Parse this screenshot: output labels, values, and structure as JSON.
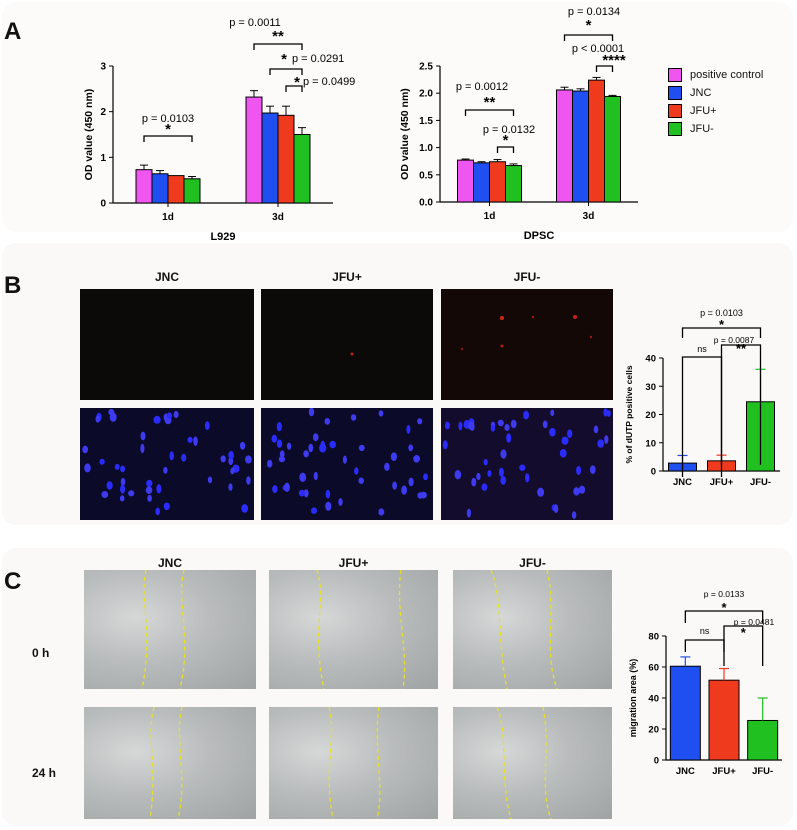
{
  "panels": {
    "a": "A",
    "b": "B",
    "c": "C"
  },
  "colors": {
    "positive_control": "#ef55ef",
    "JNC": "#1f4ff0",
    "JFU_plus": "#f03a1e",
    "JFU_minus": "#20c020"
  },
  "legend": [
    "positive control",
    "JNC",
    "JFU+",
    "JFU-"
  ],
  "chart_data": [
    {
      "id": "L929",
      "type": "bar",
      "xlabel": "L929",
      "ylabel": "OD value (450 nm)",
      "ylim": [
        0,
        3
      ],
      "yticks": [
        "0",
        "1",
        "2",
        "3"
      ],
      "categories": [
        "1d",
        "3d"
      ],
      "series": [
        {
          "name": "positive control",
          "values": [
            0.73,
            2.32
          ],
          "err": [
            0.1,
            0.14
          ]
        },
        {
          "name": "JNC",
          "values": [
            0.64,
            1.97
          ],
          "err": [
            0.07,
            0.15
          ]
        },
        {
          "name": "JFU+",
          "values": [
            0.6,
            1.92
          ],
          "err": [
            0.0,
            0.2
          ]
        },
        {
          "name": "JFU-",
          "values": [
            0.53,
            1.5
          ],
          "err": [
            0.05,
            0.15
          ]
        }
      ],
      "annotations": [
        {
          "p": "p = 0.0103",
          "stars": "*"
        },
        {
          "p": "p = 0.0011",
          "stars": "**"
        },
        {
          "p": "p = 0.0291",
          "stars": "*"
        },
        {
          "p": "p = 0.0499",
          "stars": "*"
        }
      ]
    },
    {
      "id": "DPSC",
      "type": "bar",
      "xlabel": "DPSC",
      "ylabel": "OD value (450 nm)",
      "ylim": [
        0,
        2.5
      ],
      "yticks": [
        "0.0",
        "0.5",
        "1.0",
        "1.5",
        "2.0",
        "2.5"
      ],
      "categories": [
        "1d",
        "3d"
      ],
      "series": [
        {
          "name": "positive control",
          "values": [
            0.77,
            2.06
          ],
          "err": [
            0.02,
            0.05
          ]
        },
        {
          "name": "JNC",
          "values": [
            0.72,
            2.04
          ],
          "err": [
            0.02,
            0.04
          ]
        },
        {
          "name": "JFU+",
          "values": [
            0.74,
            2.24
          ],
          "err": [
            0.04,
            0.05
          ]
        },
        {
          "name": "JFU-",
          "values": [
            0.67,
            1.94
          ],
          "err": [
            0.03,
            0.02
          ]
        }
      ],
      "annotations": [
        {
          "p": "p = 0.0012",
          "stars": "**"
        },
        {
          "p": "p = 0.0132",
          "stars": "*"
        },
        {
          "p": "p = 0.0134",
          "stars": "*"
        },
        {
          "p": "p < 0.0001",
          "stars": "****"
        }
      ]
    },
    {
      "id": "TUNEL",
      "type": "bar",
      "xlabel": "",
      "ylabel": "% of dUTP positive cells",
      "ylim": [
        0,
        40
      ],
      "yticks": [
        "0",
        "10",
        "20",
        "30",
        "40"
      ],
      "categories": [
        "JNC",
        "JFU+",
        "JFU-"
      ],
      "values": [
        2.8,
        3.6,
        24.5
      ],
      "err": [
        2.7,
        2.0,
        11.5
      ],
      "annotations": [
        {
          "p": "ns",
          "stars": ""
        },
        {
          "p": "p = 0.0087",
          "stars": "**"
        },
        {
          "p": "p = 0.0103",
          "stars": "*"
        }
      ]
    },
    {
      "id": "migration",
      "type": "bar",
      "xlabel": "",
      "ylabel": "migration area (%)",
      "ylim": [
        0,
        80
      ],
      "yticks": [
        "0",
        "20",
        "40",
        "60",
        "80"
      ],
      "categories": [
        "JNC",
        "JFU+",
        "JFU-"
      ],
      "values": [
        60.5,
        51.5,
        25.5
      ],
      "err": [
        6.0,
        7.5,
        14.5
      ],
      "annotations": [
        {
          "p": "ns",
          "stars": ""
        },
        {
          "p": "p = 0.0481",
          "stars": "*"
        },
        {
          "p": "p = 0.0133",
          "stars": "*"
        }
      ]
    }
  ],
  "panel_b": {
    "titles": [
      "JNC",
      "JFU+",
      "JFU-"
    ]
  },
  "panel_c": {
    "titles": [
      "JNC",
      "JFU+",
      "JFU-"
    ],
    "rows": [
      "0 h",
      "24 h"
    ]
  }
}
